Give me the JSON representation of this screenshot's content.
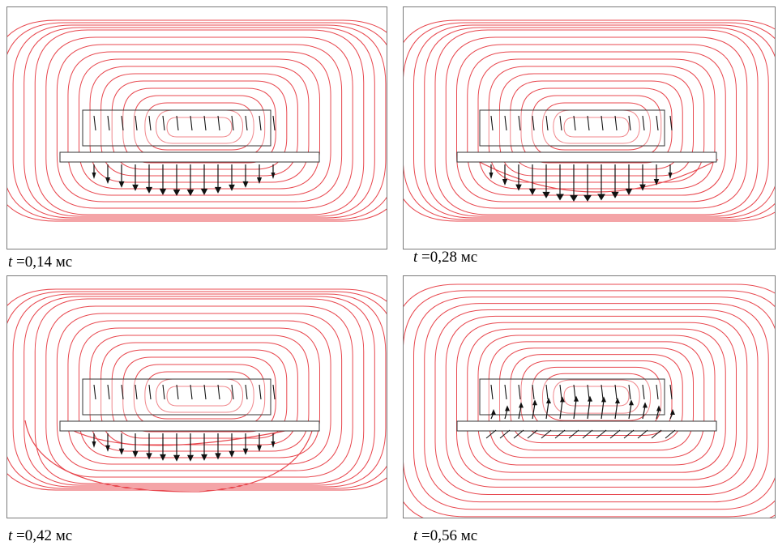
{
  "panels": [
    {
      "id": "p1",
      "var": "t",
      "eq": " =",
      "value": "0,14",
      "unit": "мс",
      "arrows": "down",
      "arrow_strength": 0.75,
      "loop_shape": "open"
    },
    {
      "id": "p2",
      "var": "t",
      "eq": " =",
      "value": "0,28",
      "unit": "мс",
      "arrows": "down",
      "arrow_strength": 1.0,
      "loop_shape": "bulge"
    },
    {
      "id": "p3",
      "var": "t",
      "eq": " =",
      "value": "0,42",
      "unit": "мс",
      "arrows": "down",
      "arrow_strength": 0.6,
      "loop_shape": "closed"
    },
    {
      "id": "p4",
      "var": "t",
      "eq": " =",
      "value": "0,56",
      "unit": "мс",
      "arrows": "up",
      "arrow_strength": 0.55,
      "loop_shape": "full"
    }
  ],
  "colors": {
    "field_lines": "#e8484f",
    "frame": "#7a7a7a",
    "arrows": "#111111",
    "structure": "#333333"
  }
}
